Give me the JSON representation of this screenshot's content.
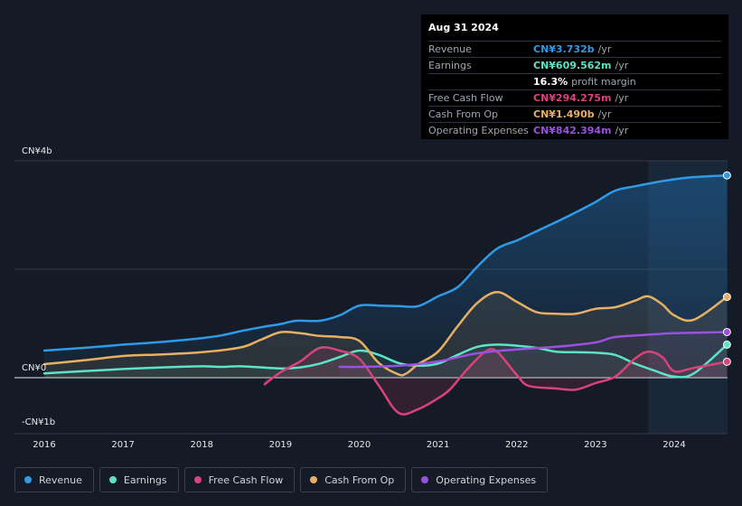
{
  "tooltip": {
    "date": "Aug 31 2024",
    "rows": [
      {
        "label": "Revenue",
        "value": "CN¥3.732b",
        "unit": "/yr",
        "color": "#2f9ae8"
      },
      {
        "label": "Earnings",
        "value": "CN¥609.562m",
        "unit": "/yr",
        "color": "#5ee3c8"
      },
      {
        "label": "",
        "value": "16.3%",
        "unit": "profit margin",
        "color": "#ffffff"
      },
      {
        "label": "Free Cash Flow",
        "value": "CN¥294.275m",
        "unit": "/yr",
        "color": "#d9437a"
      },
      {
        "label": "Cash From Op",
        "value": "CN¥1.490b",
        "unit": "/yr",
        "color": "#e8b062"
      },
      {
        "label": "Operating Expenses",
        "value": "CN¥842.394m",
        "unit": "/yr",
        "color": "#9b51e0"
      }
    ]
  },
  "legend": [
    {
      "label": "Revenue",
      "color": "#2f9ae8"
    },
    {
      "label": "Earnings",
      "color": "#5ee3c8"
    },
    {
      "label": "Free Cash Flow",
      "color": "#d9437a"
    },
    {
      "label": "Cash From Op",
      "color": "#e8b062"
    },
    {
      "label": "Operating Expenses",
      "color": "#9b51e0"
    }
  ],
  "chart_data": {
    "type": "line",
    "y_unit": "CN¥ billions",
    "ylim": [
      -1.0,
      4.0
    ],
    "xlim": [
      2015.9,
      2024.67
    ],
    "y_tick_labels": [
      {
        "value": 4,
        "label": "CN¥4b"
      },
      {
        "value": 0,
        "label": "CN¥0"
      },
      {
        "value": -1,
        "label": "-CN¥1b"
      }
    ],
    "x_ticks": [
      2016,
      2017,
      2018,
      2019,
      2020,
      2021,
      2022,
      2023,
      2024
    ],
    "x_tick_labels": [
      "2016",
      "2017",
      "2018",
      "2019",
      "2020",
      "2021",
      "2022",
      "2023",
      "2024"
    ],
    "grid": true,
    "legend_position": "bottom",
    "highlight_start": 2023.67,
    "series": [
      {
        "name": "Revenue",
        "color": "#2f9ae8",
        "points": [
          [
            2016,
            0.5
          ],
          [
            2016.5,
            0.55
          ],
          [
            2017,
            0.61
          ],
          [
            2017.5,
            0.66
          ],
          [
            2018,
            0.73
          ],
          [
            2018.25,
            0.78
          ],
          [
            2018.5,
            0.86
          ],
          [
            2018.75,
            0.93
          ],
          [
            2019,
            0.99
          ],
          [
            2019.2,
            1.05
          ],
          [
            2019.5,
            1.05
          ],
          [
            2019.75,
            1.15
          ],
          [
            2020,
            1.33
          ],
          [
            2020.25,
            1.33
          ],
          [
            2020.5,
            1.32
          ],
          [
            2020.75,
            1.32
          ],
          [
            2021,
            1.5
          ],
          [
            2021.25,
            1.67
          ],
          [
            2021.5,
            2.05
          ],
          [
            2021.75,
            2.38
          ],
          [
            2022,
            2.53
          ],
          [
            2022.25,
            2.7
          ],
          [
            2022.5,
            2.87
          ],
          [
            2022.75,
            3.05
          ],
          [
            2023,
            3.24
          ],
          [
            2023.25,
            3.45
          ],
          [
            2023.5,
            3.53
          ],
          [
            2023.75,
            3.6
          ],
          [
            2024,
            3.66
          ],
          [
            2024.25,
            3.7
          ],
          [
            2024.67,
            3.732
          ]
        ]
      },
      {
        "name": "Earnings",
        "color": "#5ee3c8",
        "points": [
          [
            2016,
            0.08
          ],
          [
            2016.5,
            0.12
          ],
          [
            2017,
            0.16
          ],
          [
            2017.5,
            0.19
          ],
          [
            2018,
            0.21
          ],
          [
            2018.25,
            0.2
          ],
          [
            2018.5,
            0.21
          ],
          [
            2019,
            0.17
          ],
          [
            2019.25,
            0.19
          ],
          [
            2019.5,
            0.26
          ],
          [
            2019.75,
            0.38
          ],
          [
            2020,
            0.5
          ],
          [
            2020.25,
            0.42
          ],
          [
            2020.5,
            0.27
          ],
          [
            2020.75,
            0.22
          ],
          [
            2021,
            0.26
          ],
          [
            2021.25,
            0.42
          ],
          [
            2021.5,
            0.57
          ],
          [
            2021.75,
            0.61
          ],
          [
            2022,
            0.59
          ],
          [
            2022.25,
            0.55
          ],
          [
            2022.5,
            0.48
          ],
          [
            2022.75,
            0.47
          ],
          [
            2023,
            0.46
          ],
          [
            2023.25,
            0.42
          ],
          [
            2023.5,
            0.26
          ],
          [
            2023.75,
            0.13
          ],
          [
            2024,
            0.02
          ],
          [
            2024.25,
            0.08
          ],
          [
            2024.67,
            0.61
          ]
        ]
      },
      {
        "name": "Free Cash Flow",
        "color": "#d9437a",
        "points": [
          [
            2018.8,
            -0.12
          ],
          [
            2019,
            0.1
          ],
          [
            2019.25,
            0.3
          ],
          [
            2019.5,
            0.55
          ],
          [
            2019.75,
            0.5
          ],
          [
            2020,
            0.35
          ],
          [
            2020.25,
            -0.15
          ],
          [
            2020.5,
            -0.65
          ],
          [
            2020.75,
            -0.58
          ],
          [
            2021,
            -0.38
          ],
          [
            2021.15,
            -0.22
          ],
          [
            2021.35,
            0.12
          ],
          [
            2021.6,
            0.48
          ],
          [
            2021.75,
            0.48
          ],
          [
            2022,
            0.05
          ],
          [
            2022.15,
            -0.15
          ],
          [
            2022.5,
            -0.2
          ],
          [
            2022.75,
            -0.22
          ],
          [
            2023,
            -0.1
          ],
          [
            2023.25,
            0.02
          ],
          [
            2023.5,
            0.35
          ],
          [
            2023.67,
            0.48
          ],
          [
            2023.85,
            0.38
          ],
          [
            2024,
            0.12
          ],
          [
            2024.25,
            0.18
          ],
          [
            2024.67,
            0.294
          ]
        ]
      },
      {
        "name": "Cash From Op",
        "color": "#e8b062",
        "points": [
          [
            2016,
            0.25
          ],
          [
            2016.5,
            0.32
          ],
          [
            2017,
            0.4
          ],
          [
            2017.5,
            0.43
          ],
          [
            2018,
            0.47
          ],
          [
            2018.5,
            0.56
          ],
          [
            2018.75,
            0.7
          ],
          [
            2019,
            0.84
          ],
          [
            2019.25,
            0.82
          ],
          [
            2019.5,
            0.77
          ],
          [
            2019.75,
            0.75
          ],
          [
            2020,
            0.68
          ],
          [
            2020.25,
            0.27
          ],
          [
            2020.5,
            0.06
          ],
          [
            2020.6,
            0.08
          ],
          [
            2020.75,
            0.25
          ],
          [
            2021,
            0.48
          ],
          [
            2021.25,
            0.95
          ],
          [
            2021.5,
            1.38
          ],
          [
            2021.75,
            1.58
          ],
          [
            2022,
            1.4
          ],
          [
            2022.25,
            1.21
          ],
          [
            2022.5,
            1.18
          ],
          [
            2022.75,
            1.18
          ],
          [
            2023,
            1.27
          ],
          [
            2023.25,
            1.3
          ],
          [
            2023.5,
            1.42
          ],
          [
            2023.67,
            1.5
          ],
          [
            2023.85,
            1.35
          ],
          [
            2024,
            1.15
          ],
          [
            2024.25,
            1.07
          ],
          [
            2024.67,
            1.49
          ]
        ]
      },
      {
        "name": "Operating Expenses",
        "color": "#9b51e0",
        "points": [
          [
            2019.75,
            0.2
          ],
          [
            2020,
            0.2
          ],
          [
            2020.5,
            0.22
          ],
          [
            2021,
            0.3
          ],
          [
            2021.5,
            0.45
          ],
          [
            2022,
            0.52
          ],
          [
            2022.5,
            0.57
          ],
          [
            2023,
            0.65
          ],
          [
            2023.25,
            0.75
          ],
          [
            2023.75,
            0.8
          ],
          [
            2024,
            0.82
          ],
          [
            2024.67,
            0.842
          ]
        ]
      }
    ]
  }
}
